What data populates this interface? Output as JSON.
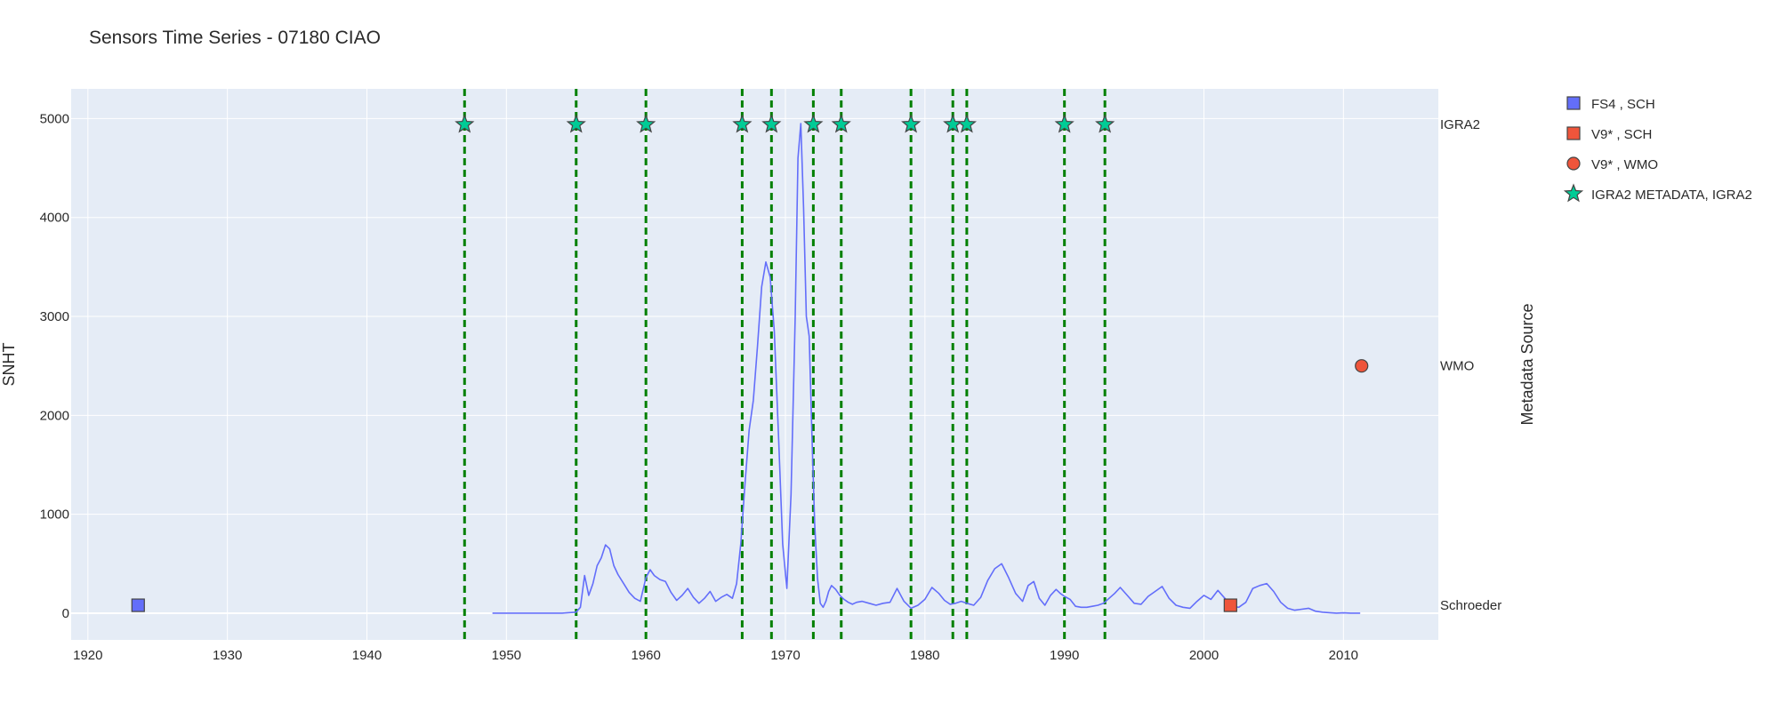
{
  "chart_data": {
    "type": "line",
    "title": "Sensors Time Series - 07180 CIAO",
    "ylabel": "SNHT",
    "y2label": "Metadata Source",
    "xlim": [
      1918.8,
      2016.8
    ],
    "ylim": [
      -270,
      5300
    ],
    "x_ticks": [
      "1920",
      "1930",
      "1940",
      "1950",
      "1960",
      "1970",
      "1980",
      "1990",
      "2000",
      "2010"
    ],
    "y_ticks": [
      "0",
      "1000",
      "2000",
      "3000",
      "4000",
      "5000"
    ],
    "y2_categories": [
      "Schroeder",
      "WMO",
      "IGRA2"
    ],
    "grid": true,
    "legend_position": "right",
    "colors": {
      "plot_bg": "#E5ECF6",
      "grid": "#FFFFFF",
      "snht_line": "#636EFA",
      "fs4_sch": "#636EFA",
      "v9_sch": "#EF553B",
      "v9_wmo": "#EF553B",
      "igra2": "#00CC96",
      "vline": "#008000"
    },
    "snht_series": {
      "x": [
        1949.0,
        1954.0,
        1955.0,
        1955.3,
        1955.6,
        1955.9,
        1956.2,
        1956.5,
        1956.8,
        1957.1,
        1957.4,
        1957.7,
        1958.0,
        1958.4,
        1958.8,
        1959.2,
        1959.6,
        1960.0,
        1960.3,
        1960.6,
        1961.0,
        1961.4,
        1961.8,
        1962.2,
        1962.6,
        1963.0,
        1963.4,
        1963.8,
        1964.2,
        1964.6,
        1965.0,
        1965.4,
        1965.8,
        1966.2,
        1966.5,
        1966.8,
        1967.1,
        1967.4,
        1967.7,
        1968.0,
        1968.3,
        1968.6,
        1968.9,
        1969.2,
        1969.5,
        1969.8,
        1970.1,
        1970.4,
        1970.7,
        1970.9,
        1971.1,
        1971.3,
        1971.5,
        1971.7,
        1971.9,
        1972.1,
        1972.3,
        1972.5,
        1972.7,
        1972.9,
        1973.1,
        1973.3,
        1973.6,
        1973.9,
        1974.2,
        1974.5,
        1974.8,
        1975.1,
        1975.5,
        1976.0,
        1976.5,
        1977.0,
        1977.5,
        1978.0,
        1978.5,
        1979.0,
        1979.5,
        1980.0,
        1980.5,
        1981.0,
        1981.4,
        1981.8,
        1982.2,
        1982.6,
        1983.0,
        1983.5,
        1984.0,
        1984.5,
        1985.0,
        1985.5,
        1986.0,
        1986.5,
        1987.0,
        1987.4,
        1987.8,
        1988.2,
        1988.6,
        1989.0,
        1989.4,
        1989.7,
        1990.0,
        1990.4,
        1990.8,
        1991.2,
        1991.6,
        1992.0,
        1992.4,
        1992.8,
        1993.2,
        1993.6,
        1994.0,
        1994.5,
        1995.0,
        1995.5,
        1996.0,
        1996.5,
        1997.0,
        1997.5,
        1998.0,
        1998.5,
        1999.0,
        1999.5,
        2000.0,
        2000.5,
        2001.0,
        2001.5,
        2002.0,
        2002.5,
        2003.0,
        2003.5,
        2004.0,
        2004.5,
        2005.0,
        2005.5,
        2006.0,
        2006.5,
        2007.0,
        2007.5,
        2008.0,
        2008.5,
        2009.0,
        2009.5,
        2010.0,
        2010.5,
        2011.2
      ],
      "y": [
        0,
        0,
        10,
        60,
        380,
        180,
        300,
        480,
        560,
        690,
        650,
        480,
        390,
        300,
        210,
        150,
        120,
        360,
        440,
        380,
        340,
        320,
        210,
        130,
        180,
        250,
        160,
        100,
        150,
        220,
        120,
        160,
        190,
        150,
        300,
        700,
        1300,
        1850,
        2150,
        2700,
        3300,
        3550,
        3400,
        2850,
        1800,
        700,
        250,
        1200,
        3000,
        4600,
        4950,
        4100,
        3000,
        2800,
        1800,
        900,
        350,
        100,
        60,
        120,
        220,
        280,
        240,
        180,
        140,
        110,
        90,
        110,
        120,
        100,
        80,
        100,
        110,
        250,
        120,
        50,
        80,
        140,
        260,
        200,
        130,
        90,
        100,
        120,
        100,
        80,
        160,
        330,
        450,
        500,
        360,
        200,
        120,
        280,
        320,
        150,
        80,
        180,
        240,
        200,
        170,
        140,
        70,
        60,
        60,
        70,
        80,
        100,
        150,
        200,
        260,
        180,
        100,
        90,
        170,
        220,
        270,
        150,
        80,
        60,
        50,
        120,
        180,
        140,
        230,
        150,
        70,
        60,
        110,
        250,
        280,
        300,
        220,
        110,
        50,
        30,
        40,
        50,
        20,
        10,
        5,
        0,
        3,
        0,
        0
      ]
    },
    "vertical_lines_x": [
      1947.0,
      1955.0,
      1960.0,
      1966.9,
      1969.0,
      1972.0,
      1974.0,
      1979.0,
      1982.0,
      1983.0,
      1990.0,
      1992.9
    ],
    "igra2_points": [
      1947.0,
      1955.0,
      1960.0,
      1966.9,
      1969.0,
      1972.0,
      1974.0,
      1979.0,
      1982.0,
      1983.0,
      1990.0,
      1992.9
    ],
    "fs4_sch_points": [
      1923.6
    ],
    "v9_sch_points": [
      2001.9
    ],
    "v9_wmo_points": [
      2011.3
    ],
    "legend": [
      {
        "label": "FS4 , SCH",
        "symbol": "square",
        "color": "#636EFA"
      },
      {
        "label": "V9* , SCH",
        "symbol": "square",
        "color": "#EF553B"
      },
      {
        "label": "V9* , WMO",
        "symbol": "circle",
        "color": "#EF553B"
      },
      {
        "label": "IGRA2 METADATA, IGRA2",
        "symbol": "star",
        "color": "#00CC96"
      }
    ]
  }
}
